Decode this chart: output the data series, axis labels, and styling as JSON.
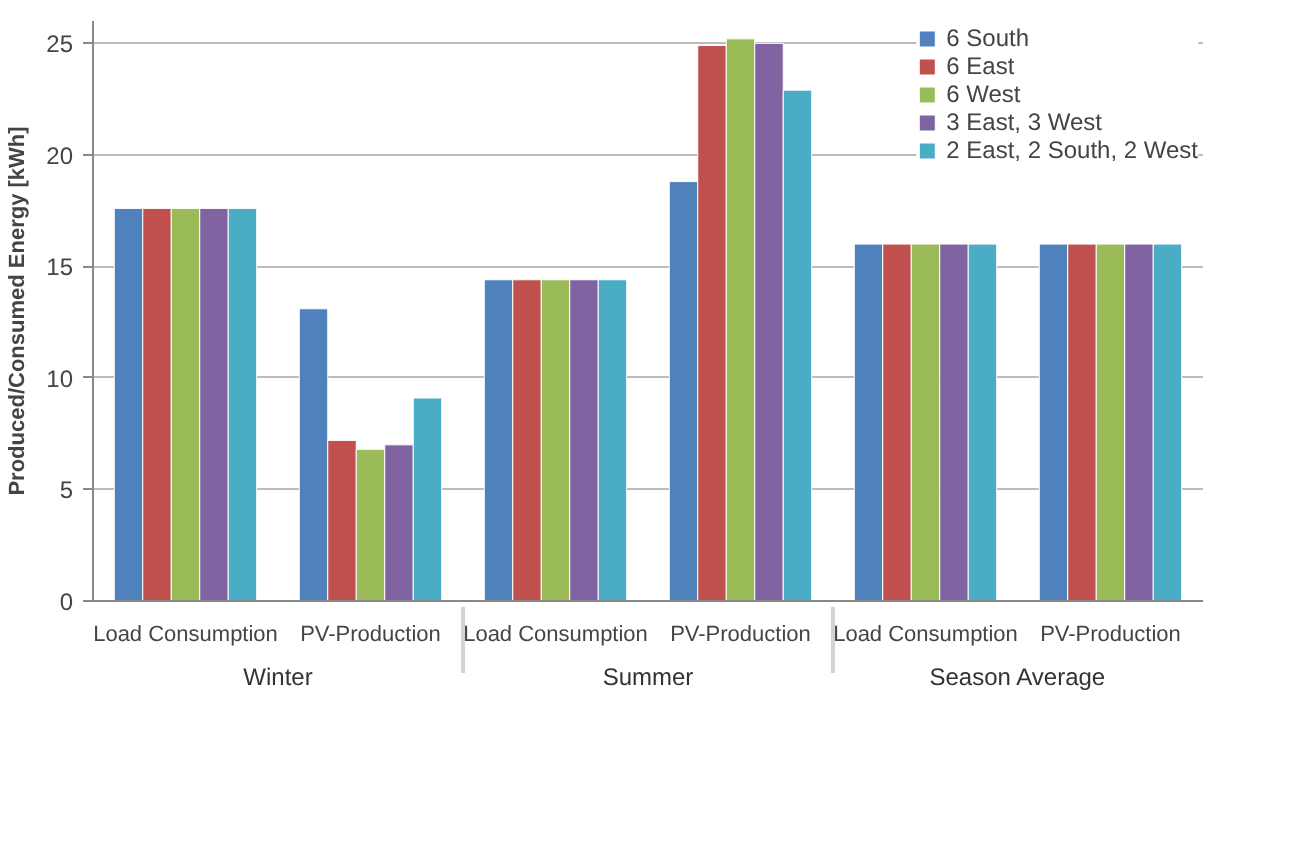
{
  "chart_data": {
    "type": "bar",
    "ylabel": "Produced/Consumed Energy [kWh]",
    "categories": [
      "Load Consumption",
      "PV-Production",
      "Load Consumption",
      "PV-Production",
      "Load Consumption",
      "PV-Production"
    ],
    "annotations": [
      "Winter",
      "Summer",
      "Season Average"
    ],
    "series": [
      {
        "name": "6 South",
        "color": "#4f81bd",
        "values": [
          17.6,
          13.1,
          14.4,
          18.8,
          16.0,
          16.0
        ]
      },
      {
        "name": "6 East",
        "color": "#c0504d",
        "values": [
          17.6,
          7.2,
          14.4,
          24.9,
          16.0,
          16.0
        ]
      },
      {
        "name": "6 West",
        "color": "#9bbb59",
        "values": [
          17.6,
          6.8,
          14.4,
          25.2,
          16.0,
          16.0
        ]
      },
      {
        "name": "3 East, 3 West",
        "color": "#8064a2",
        "values": [
          17.6,
          7.0,
          14.4,
          25.0,
          16.0,
          16.0
        ]
      },
      {
        "name": "2 East, 2 South, 2 West",
        "color": "#4bacc6",
        "values": [
          17.6,
          9.1,
          14.4,
          22.9,
          16.0,
          16.0
        ]
      }
    ],
    "ylim": [
      0,
      26
    ],
    "yticks": [
      0,
      5,
      10,
      15,
      20,
      25
    ],
    "grid": "y",
    "legend": "top right"
  }
}
